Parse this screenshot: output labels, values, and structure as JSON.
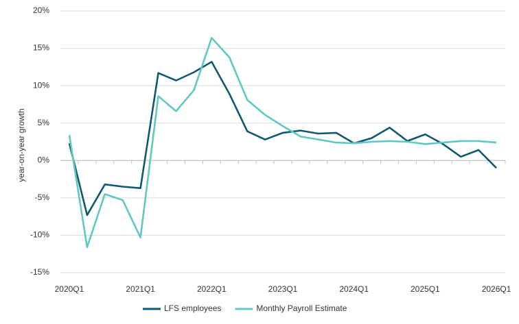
{
  "chart_data": {
    "type": "line",
    "y_label": "year-on-year growth",
    "categories": [
      "2020Q1",
      null,
      null,
      null,
      "2021Q1",
      null,
      null,
      null,
      "2022Q1",
      null,
      null,
      null,
      "2023Q1",
      null,
      null,
      null,
      "2024Q1",
      null,
      null,
      null,
      "2025Q1",
      null,
      null,
      null,
      "2026Q1"
    ],
    "series": [
      {
        "name": "LFS employees",
        "color": "#0f5870",
        "values": [
          2.3,
          -7.3,
          -3.2,
          -3.5,
          -3.7,
          11.7,
          10.7,
          11.8,
          13.2,
          8.9,
          3.9,
          2.8,
          3.7,
          4.0,
          3.6,
          3.7,
          2.3,
          3.0,
          4.4,
          2.6,
          3.5,
          2.2,
          0.5,
          1.4,
          -1.0
        ]
      },
      {
        "name": "Monthly Payroll Estimate",
        "color": "#5ec8c3",
        "values": [
          3.4,
          -11.6,
          -4.5,
          -5.3,
          -10.3,
          8.6,
          6.6,
          9.4,
          16.4,
          13.8,
          8.1,
          6.1,
          4.6,
          3.2,
          2.8,
          2.4,
          2.3,
          2.5,
          2.6,
          2.5,
          2.2,
          2.4,
          2.6,
          2.6,
          2.4
        ]
      }
    ],
    "ylim": [
      -15,
      20
    ],
    "yticks": [
      {
        "value": -15,
        "label": "-15%"
      },
      {
        "value": -10,
        "label": "-10%"
      },
      {
        "value": -5,
        "label": "-5%"
      },
      {
        "value": 0,
        "label": "0%"
      },
      {
        "value": 5,
        "label": "5%"
      },
      {
        "value": 10,
        "label": "10%"
      },
      {
        "value": 15,
        "label": "15%"
      },
      {
        "value": 20,
        "label": "20%"
      }
    ],
    "grid": true,
    "legend": "bottom"
  }
}
